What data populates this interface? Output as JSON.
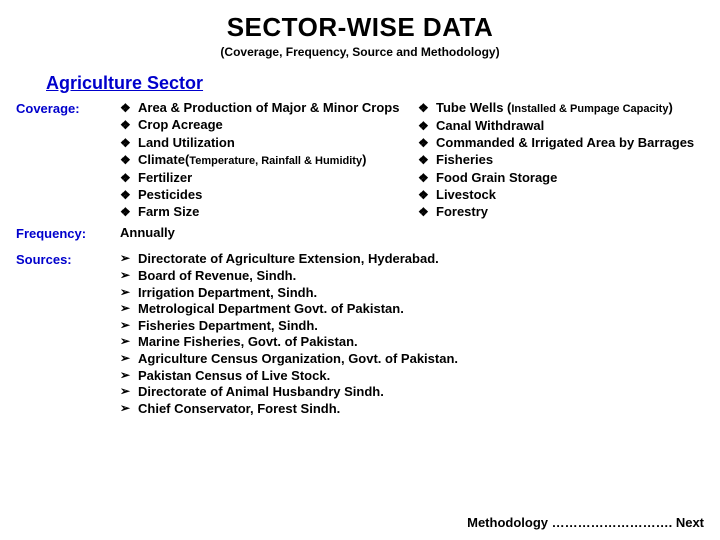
{
  "title": "SECTOR-WISE DATA",
  "subtitle": "(Coverage, Frequency, Source and Methodology)",
  "section": "Agriculture Sector",
  "labels": {
    "coverage": "Coverage:",
    "frequency": "Frequency:",
    "sources": "Sources:"
  },
  "bullets": {
    "diamond": "❖",
    "arrow": "➢"
  },
  "coverage": {
    "left": [
      {
        "pre": "Area & Production of Major & Minor Crops"
      },
      {
        "pre": "Crop Acreage"
      },
      {
        "pre": "Land Utilization"
      },
      {
        "pre": "Climate(",
        "sub": "Temperature, Rainfall & Humidity",
        "post": ")"
      },
      {
        "pre": "Fertilizer"
      },
      {
        "pre": "Pesticides"
      },
      {
        "pre": "Farm Size"
      }
    ],
    "right": [
      {
        "pre": "Tube Wells (",
        "sub": "Installed & Pumpage Capacity",
        "post": ")"
      },
      {
        "pre": "Canal Withdrawal"
      },
      {
        "pre": "Commanded & Irrigated Area by Barrages"
      },
      {
        "pre": "Fisheries"
      },
      {
        "pre": "Food Grain Storage"
      },
      {
        "pre": "Livestock"
      },
      {
        "pre": "Forestry"
      }
    ]
  },
  "frequency": "Annually",
  "sources": [
    "Directorate of Agriculture Extension, Hyderabad.",
    "Board of Revenue, Sindh.",
    "Irrigation Department, Sindh.",
    "Metrological Department Govt. of Pakistan.",
    "Fisheries Department, Sindh.",
    "Marine Fisheries, Govt. of Pakistan.",
    "Agriculture Census Organization, Govt. of Pakistan.",
    "Pakistan Census of Live Stock.",
    "Directorate of Animal Husbandry Sindh.",
    "Chief Conservator, Forest Sindh."
  ],
  "footer": "Methodology ………………………. Next"
}
